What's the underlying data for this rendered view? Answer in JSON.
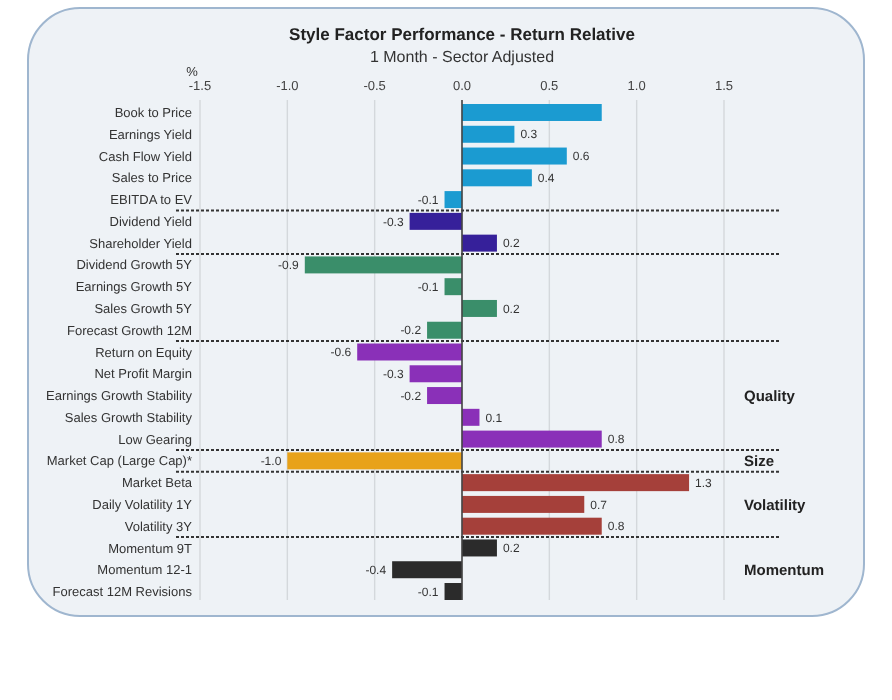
{
  "chart_data": {
    "type": "bar",
    "orientation": "horizontal",
    "title": "Style Factor Performance - Return Relative",
    "subtitle": "1 Month - Sector Adjusted",
    "xlabel": "%",
    "categories": [
      "Book to Price",
      "Earnings Yield",
      "Cash Flow Yield",
      "Sales to Price",
      "EBITDA to EV",
      "Dividend Yield",
      "Shareholder Yield",
      "Dividend Growth 5Y",
      "Earnings Growth 5Y",
      "Sales Growth 5Y",
      "Forecast Growth 12M",
      "Return on Equity",
      "Net Profit Margin",
      "Earnings Growth Stability",
      "Sales Growth Stability",
      "Low Gearing",
      "Market Cap (Large Cap)*",
      "Market Beta",
      "Daily Volatility 1Y",
      "Volatility 3Y",
      "Momentum 9T",
      "Momentum 12-1",
      "Forecast 12M Revisions"
    ],
    "values": [
      0.8,
      0.3,
      0.6,
      0.4,
      -0.1,
      -0.3,
      0.2,
      -0.9,
      -0.1,
      0.2,
      -0.2,
      -0.6,
      -0.3,
      -0.2,
      0.1,
      0.8,
      -1.0,
      1.3,
      0.7,
      0.8,
      0.2,
      -0.4,
      -0.1
    ],
    "value_labels": [
      null,
      "0.3",
      "0.6",
      "0.4",
      "-0.1",
      "-0.3",
      "0.2",
      "-0.9",
      "-0.1",
      "0.2",
      "-0.2",
      "-0.6",
      "-0.3",
      "-0.2",
      "0.1",
      "0.8",
      "-1.0",
      "1.3",
      "0.7",
      "0.8",
      "0.2",
      "-0.4",
      "-0.1"
    ],
    "colors": [
      "#1b9bd1",
      "#1b9bd1",
      "#1b9bd1",
      "#1b9bd1",
      "#1b9bd1",
      "#36209a",
      "#36209a",
      "#3a8e6a",
      "#3a8e6a",
      "#3a8e6a",
      "#3a8e6a",
      "#8a30b8",
      "#8a30b8",
      "#8a30b8",
      "#8a30b8",
      "#8a30b8",
      "#e8a21a",
      "#a5403a",
      "#a5403a",
      "#a5403a",
      "#2b2b2b",
      "#2b2b2b",
      "#2b2b2b"
    ],
    "xlim": [
      -1.5,
      1.5
    ],
    "xticks": [
      {
        "value": -1.5,
        "label": "-1.5"
      },
      {
        "value": -1.0,
        "label": "-1.0"
      },
      {
        "value": -0.5,
        "label": "-0.5"
      },
      {
        "value": 0,
        "label": "0.0"
      },
      {
        "value": 0.5,
        "label": "0.5"
      },
      {
        "value": 1.0,
        "label": "1.0"
      },
      {
        "value": 1.5,
        "label": "1.5"
      }
    ],
    "grid": "x",
    "annotations": [
      "Quality",
      "Size",
      "Volatility",
      "Momentum"
    ]
  }
}
